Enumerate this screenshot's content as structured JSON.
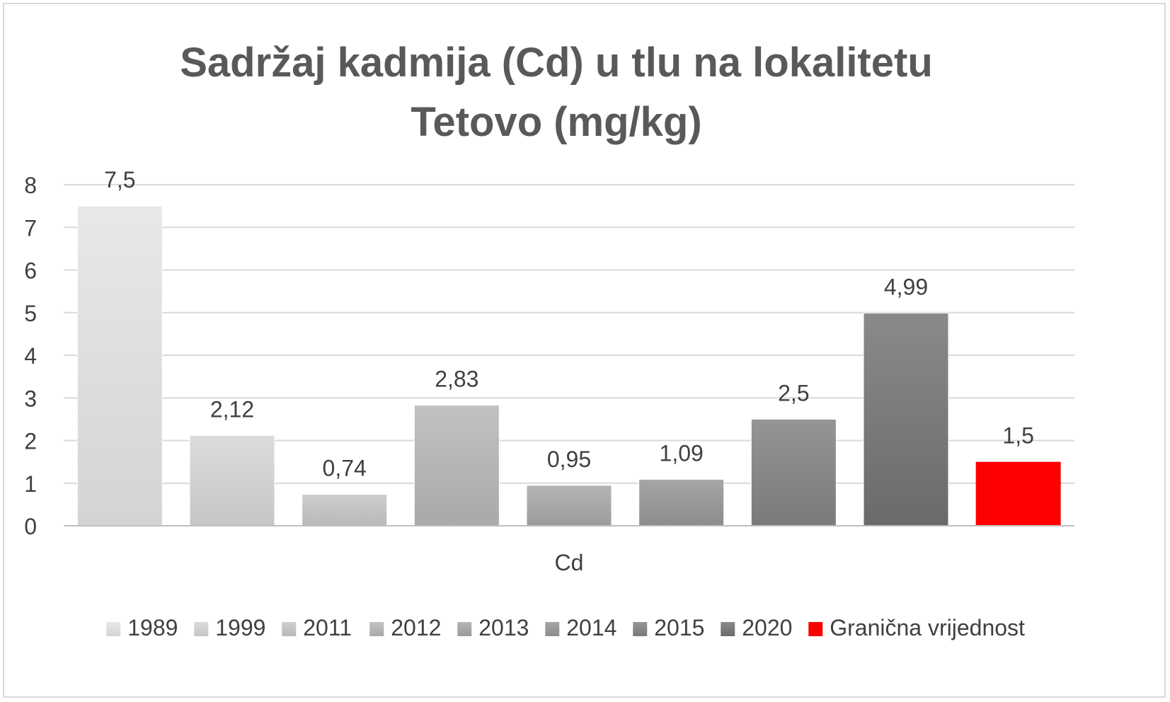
{
  "chart_data": {
    "type": "bar",
    "title": "Sadržaj kadmija (Cd) u tlu na lokalitetu Tetovo (mg/kg)",
    "title_lines": [
      "Sadržaj kadmija (Cd) u tlu na lokalitetu",
      "Tetovo (mg/kg)"
    ],
    "categories": [
      "Cd"
    ],
    "xlabel": "",
    "ylabel": "",
    "ylim": [
      0,
      8
    ],
    "yticks": [
      "0",
      "1",
      "2",
      "3",
      "4",
      "5",
      "6",
      "7",
      "8"
    ],
    "grid": true,
    "legend_position": "bottom",
    "series": [
      {
        "name": "1989",
        "values": [
          7.5
        ],
        "label": "7,5",
        "color_top": "#e8e8e8",
        "color_bottom": "#d4d4d4"
      },
      {
        "name": "1999",
        "values": [
          2.12
        ],
        "label": "2,12",
        "color_top": "#dcdcdc",
        "color_bottom": "#c6c6c6"
      },
      {
        "name": "2011",
        "values": [
          0.74
        ],
        "label": "0,74",
        "color_top": "#cfcfcf",
        "color_bottom": "#b8b8b8"
      },
      {
        "name": "2012",
        "values": [
          2.83
        ],
        "label": "2,83",
        "color_top": "#c2c2c2",
        "color_bottom": "#a9a9a9"
      },
      {
        "name": "2013",
        "values": [
          0.95
        ],
        "label": "0,95",
        "color_top": "#b5b5b5",
        "color_bottom": "#9b9b9b"
      },
      {
        "name": "2014",
        "values": [
          1.09
        ],
        "label": "1,09",
        "color_top": "#a6a6a6",
        "color_bottom": "#8c8c8c"
      },
      {
        "name": "2015",
        "values": [
          2.5
        ],
        "label": "2,5",
        "color_top": "#959595",
        "color_bottom": "#7a7a7a"
      },
      {
        "name": "2020",
        "values": [
          4.99
        ],
        "label": "4,99",
        "color_top": "#8a8a8a",
        "color_bottom": "#6a6a6a"
      },
      {
        "name": "Granična vrijednost",
        "values": [
          1.5
        ],
        "label": "1,5",
        "color_top": "#ff0000",
        "color_bottom": "#ff0000"
      }
    ]
  },
  "colors": {
    "title": "#595959",
    "text": "#404040",
    "grid": "#d9d9d9",
    "axis": "#bfbfbf",
    "limit": "#ff0000"
  }
}
